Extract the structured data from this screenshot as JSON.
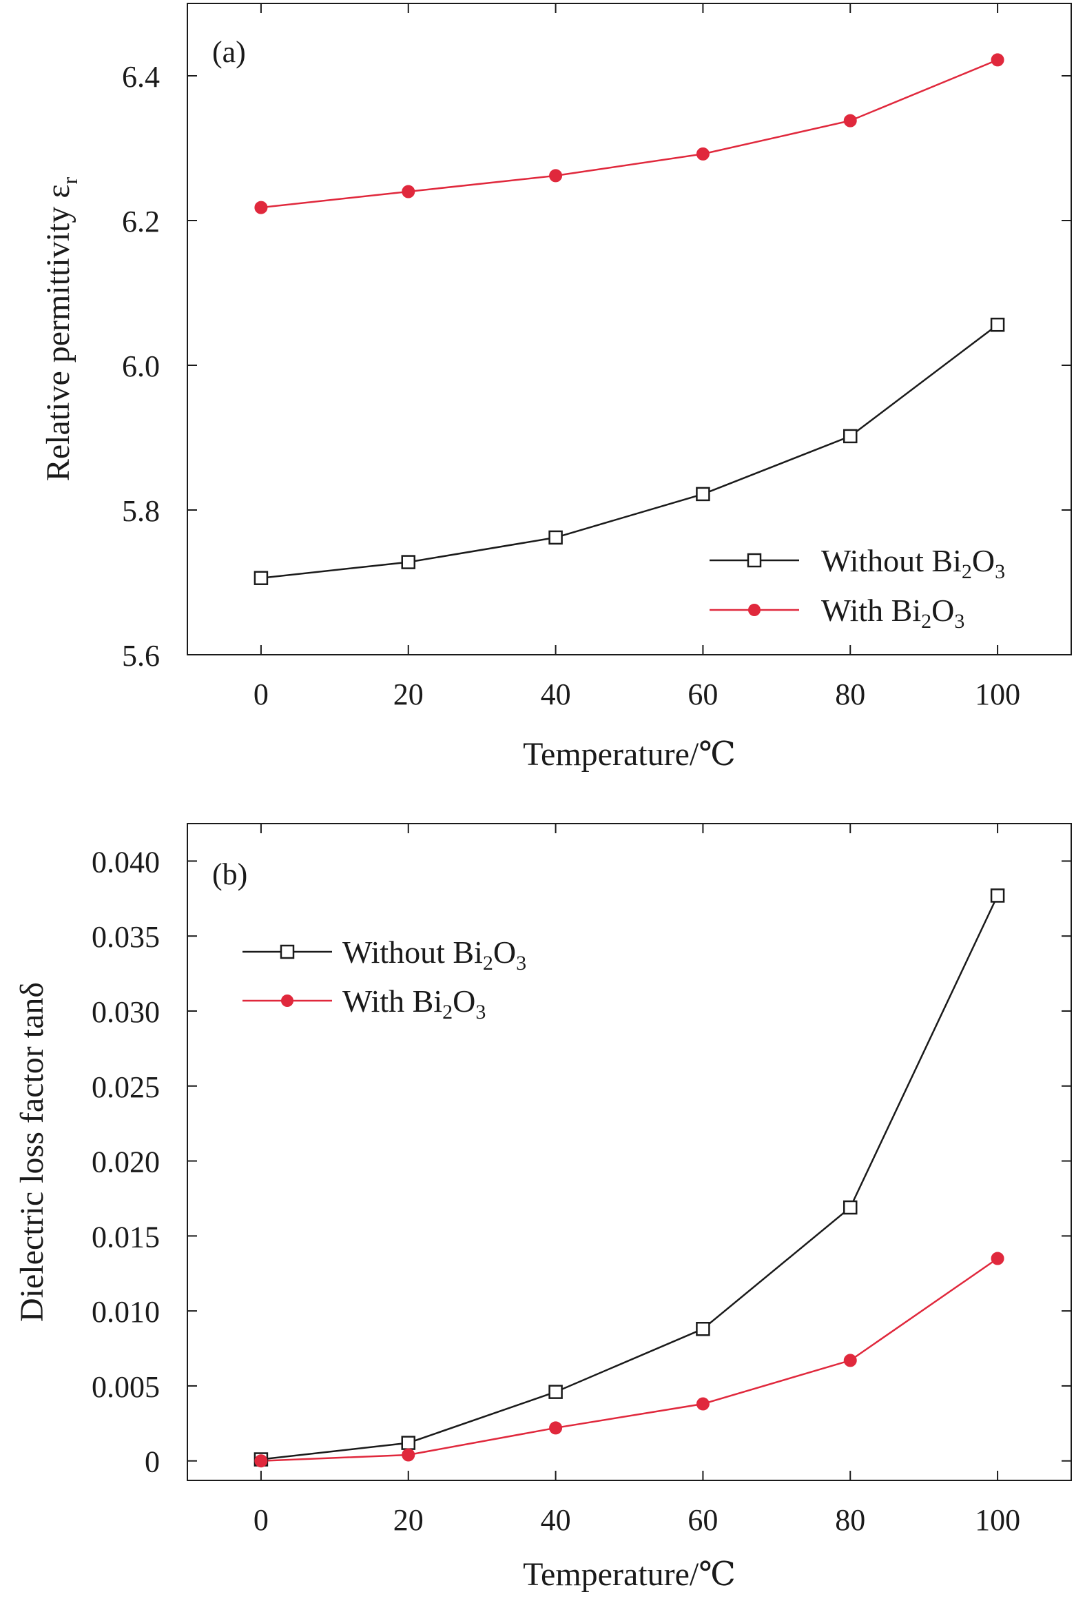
{
  "chart_data": [
    {
      "type": "line",
      "panel_label": "(a)",
      "xlabel": "Temperature/℃",
      "ylabel": "Relative permittivity ε",
      "ylabel_sub": "r",
      "x": [
        0,
        20,
        40,
        60,
        80,
        100
      ],
      "xticks": [
        "0",
        "20",
        "40",
        "60",
        "80",
        "100"
      ],
      "xlim": [
        -10,
        110
      ],
      "ylim": [
        5.6,
        6.5
      ],
      "yticks": [
        5.6,
        5.8,
        6.0,
        6.2,
        6.4
      ],
      "ytick_labels": [
        "5.6",
        "5.8",
        "6.0",
        "6.2",
        "6.4"
      ],
      "legend_position": "bottom-right",
      "series": [
        {
          "name": "Without Bi2O3",
          "legend": {
            "base": "Without Bi",
            "sub1": "2",
            "mid": "O",
            "sub2": "3"
          },
          "color": "#1a1a1a",
          "marker": "open-square",
          "values": [
            5.706,
            5.728,
            5.762,
            5.822,
            5.902,
            6.056
          ]
        },
        {
          "name": "With Bi2O3",
          "legend": {
            "base": "With Bi",
            "sub1": "2",
            "mid": "O",
            "sub2": "3"
          },
          "color": "#e0283c",
          "marker": "filled-circle",
          "values": [
            6.218,
            6.24,
            6.262,
            6.292,
            6.338,
            6.422
          ]
        }
      ]
    },
    {
      "type": "line",
      "panel_label": "(b)",
      "xlabel": "Temperature/℃",
      "ylabel": "Dielectric loss factor tanδ",
      "x": [
        0,
        20,
        40,
        60,
        80,
        100
      ],
      "xticks": [
        "0",
        "20",
        "40",
        "60",
        "80",
        "100"
      ],
      "xlim": [
        -10,
        110
      ],
      "ylim": [
        -0.0013,
        0.0425
      ],
      "yticks": [
        0,
        0.005,
        0.01,
        0.015,
        0.02,
        0.025,
        0.03,
        0.035,
        0.04
      ],
      "ytick_labels": [
        "0",
        "0.005",
        "0.010",
        "0.015",
        "0.020",
        "0.025",
        "0.030",
        "0.035",
        "0.040"
      ],
      "legend_position": "top-left",
      "series": [
        {
          "name": "Without Bi2O3",
          "legend": {
            "base": "Without Bi",
            "sub1": "2",
            "mid": "O",
            "sub2": "3"
          },
          "color": "#1a1a1a",
          "marker": "open-square",
          "values": [
            0.0001,
            0.0012,
            0.0046,
            0.0088,
            0.0169,
            0.0377
          ]
        },
        {
          "name": "With Bi2O3",
          "legend": {
            "base": "With Bi",
            "sub1": "2",
            "mid": "O",
            "sub2": "3"
          },
          "color": "#e0283c",
          "marker": "filled-circle",
          "values": [
            0.0,
            0.0004,
            0.0022,
            0.0038,
            0.0067,
            0.0135
          ]
        }
      ]
    }
  ]
}
